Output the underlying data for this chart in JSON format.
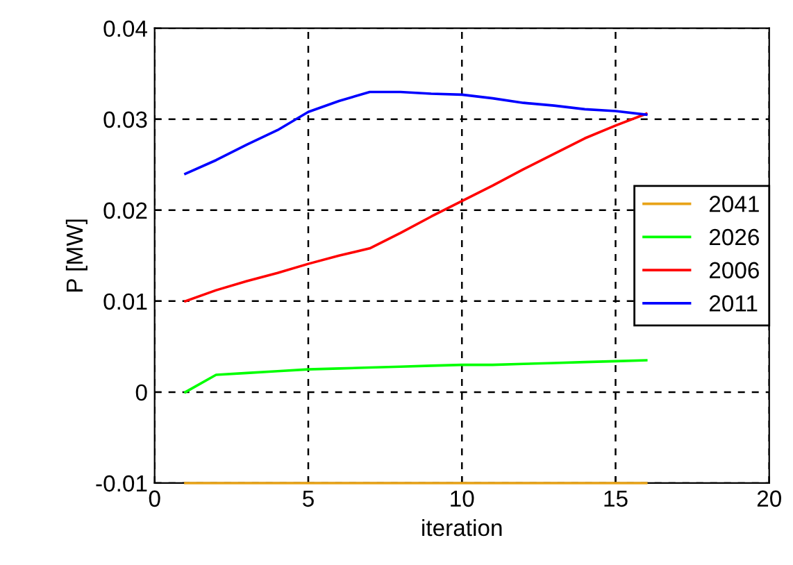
{
  "chart_data": {
    "type": "line",
    "xlabel": "iteration",
    "ylabel": "P [MW]",
    "x": [
      1,
      2,
      3,
      4,
      5,
      6,
      7,
      8,
      9,
      10,
      11,
      12,
      13,
      14,
      15,
      16
    ],
    "series": [
      {
        "name": "2041",
        "color": "#e8a317",
        "values": [
          -0.01,
          -0.01,
          -0.01,
          -0.01,
          -0.01,
          -0.01,
          -0.01,
          -0.01,
          -0.01,
          -0.01,
          -0.01,
          -0.01,
          -0.01,
          -0.01,
          -0.01,
          -0.01
        ]
      },
      {
        "name": "2026",
        "color": "#00ff00",
        "values": [
          0,
          0.0019,
          0.0021,
          0.0023,
          0.0025,
          0.0026,
          0.0027,
          0.0028,
          0.0029,
          0.003,
          0.003,
          0.0031,
          0.0032,
          0.0033,
          0.0034,
          0.0035
        ]
      },
      {
        "name": "2006",
        "color": "#ff0000",
        "values": [
          0.01,
          0.0112,
          0.0122,
          0.0131,
          0.0141,
          0.015,
          0.0158,
          0.0175,
          0.0193,
          0.021,
          0.0227,
          0.0245,
          0.0262,
          0.0279,
          0.0293,
          0.0306
        ]
      },
      {
        "name": "2011",
        "color": "#0000ff",
        "values": [
          0.024,
          0.0255,
          0.0272,
          0.0288,
          0.0308,
          0.032,
          0.033,
          0.033,
          0.0328,
          0.0327,
          0.0323,
          0.0318,
          0.0315,
          0.0311,
          0.0309,
          0.0305
        ]
      }
    ],
    "xlim": [
      0,
      20
    ],
    "xticks": [
      0,
      5,
      10,
      15,
      20
    ],
    "ylim": [
      -0.01,
      0.04
    ],
    "yticks": [
      -0.01,
      0,
      0.01,
      0.02,
      0.03,
      0.04
    ],
    "grid": true,
    "line_style": "solid",
    "legend": "right"
  }
}
